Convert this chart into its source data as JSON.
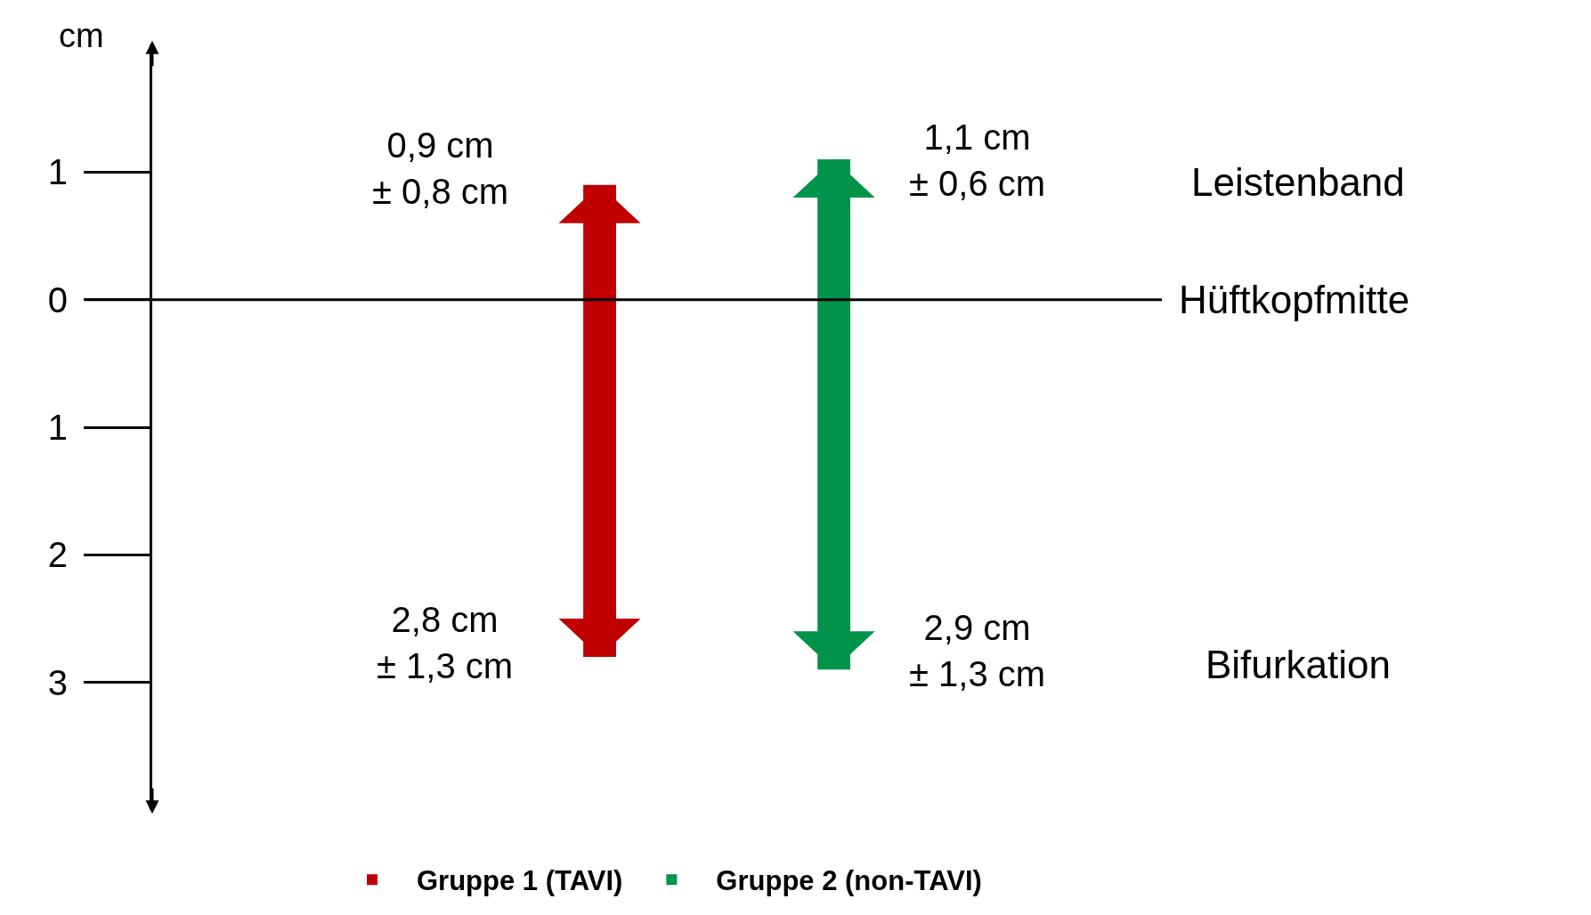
{
  "chart_data": {
    "type": "bar",
    "ylabel": "cm",
    "categories": [
      null,
      null
    ],
    "series": [
      {
        "name": "Gruppe 1 (TAVI)",
        "color": "#c00000",
        "values": [
          3.7,
          null
        ],
        "base": [
          -2.8,
          null
        ]
      },
      {
        "name": "Gruppe 2 (non-TAVI)",
        "color": "#00934a",
        "values": [
          null,
          4.0
        ],
        "base": [
          null,
          -2.9
        ]
      }
    ],
    "ylim": [
      -4,
      2
    ],
    "yticks": [
      {
        "value": 1,
        "label": "1"
      },
      0,
      {
        "value": -1,
        "label": "1"
      },
      {
        "value": -2,
        "label": "2"
      },
      {
        "value": -3,
        "label": "3"
      }
    ],
    "ref_lines": [
      {
        "axis": "y",
        "value": 0,
        "label": "Hüftkopfmitte",
        "color": "#000000"
      }
    ],
    "annotations": [
      "0,9 cm\n± 0,8 cm",
      "2,8 cm\n± 1,3 cm",
      "1,1 cm\n± 0,6 cm",
      "2,9 cm\n± 1,3 cm",
      "Leistenband",
      "Bifurkation"
    ],
    "grid": false,
    "legend": "bottom"
  }
}
